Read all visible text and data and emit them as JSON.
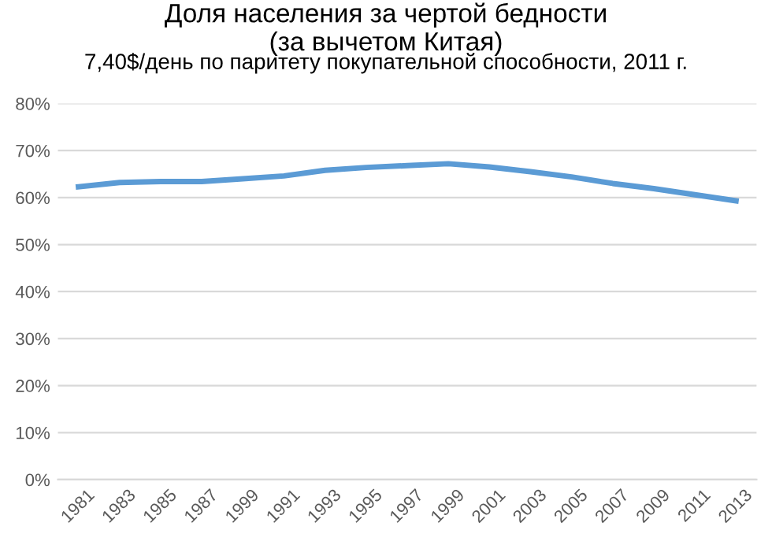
{
  "chart_data": {
    "type": "line",
    "title": "Доля населения за чертой бедности\n(за вычетом Китая)",
    "subtitle": "7,40$/день по паритету покупательной способности, 2011 г.",
    "categories": [
      "1981",
      "1983",
      "1985",
      "1987",
      "1999",
      "1991",
      "1993",
      "1995",
      "1997",
      "1999",
      "2001",
      "2003",
      "2005",
      "2007",
      "2009",
      "2011",
      "2013"
    ],
    "series": [
      {
        "color": "#5b9bd5",
        "values": [
          62.3,
          63.2,
          63.4,
          63.4,
          64.0,
          64.6,
          65.8,
          66.4,
          66.8,
          67.2,
          66.5,
          65.5,
          64.4,
          63.0,
          61.9,
          60.6,
          59.3
        ]
      }
    ],
    "ylim": [
      0,
      80
    ],
    "yticks": [
      {
        "value": 0,
        "label": "0%"
      },
      {
        "value": 10,
        "label": "10%"
      },
      {
        "value": 20,
        "label": "20%"
      },
      {
        "value": 30,
        "label": "30%"
      },
      {
        "value": 40,
        "label": "40%"
      },
      {
        "value": 50,
        "label": "50%"
      },
      {
        "value": 60,
        "label": "60%"
      },
      {
        "value": 70,
        "label": "70%"
      },
      {
        "value": 80,
        "label": "80%"
      }
    ],
    "grid": "y",
    "legend": false,
    "marker": "none",
    "line_style": "solid"
  }
}
